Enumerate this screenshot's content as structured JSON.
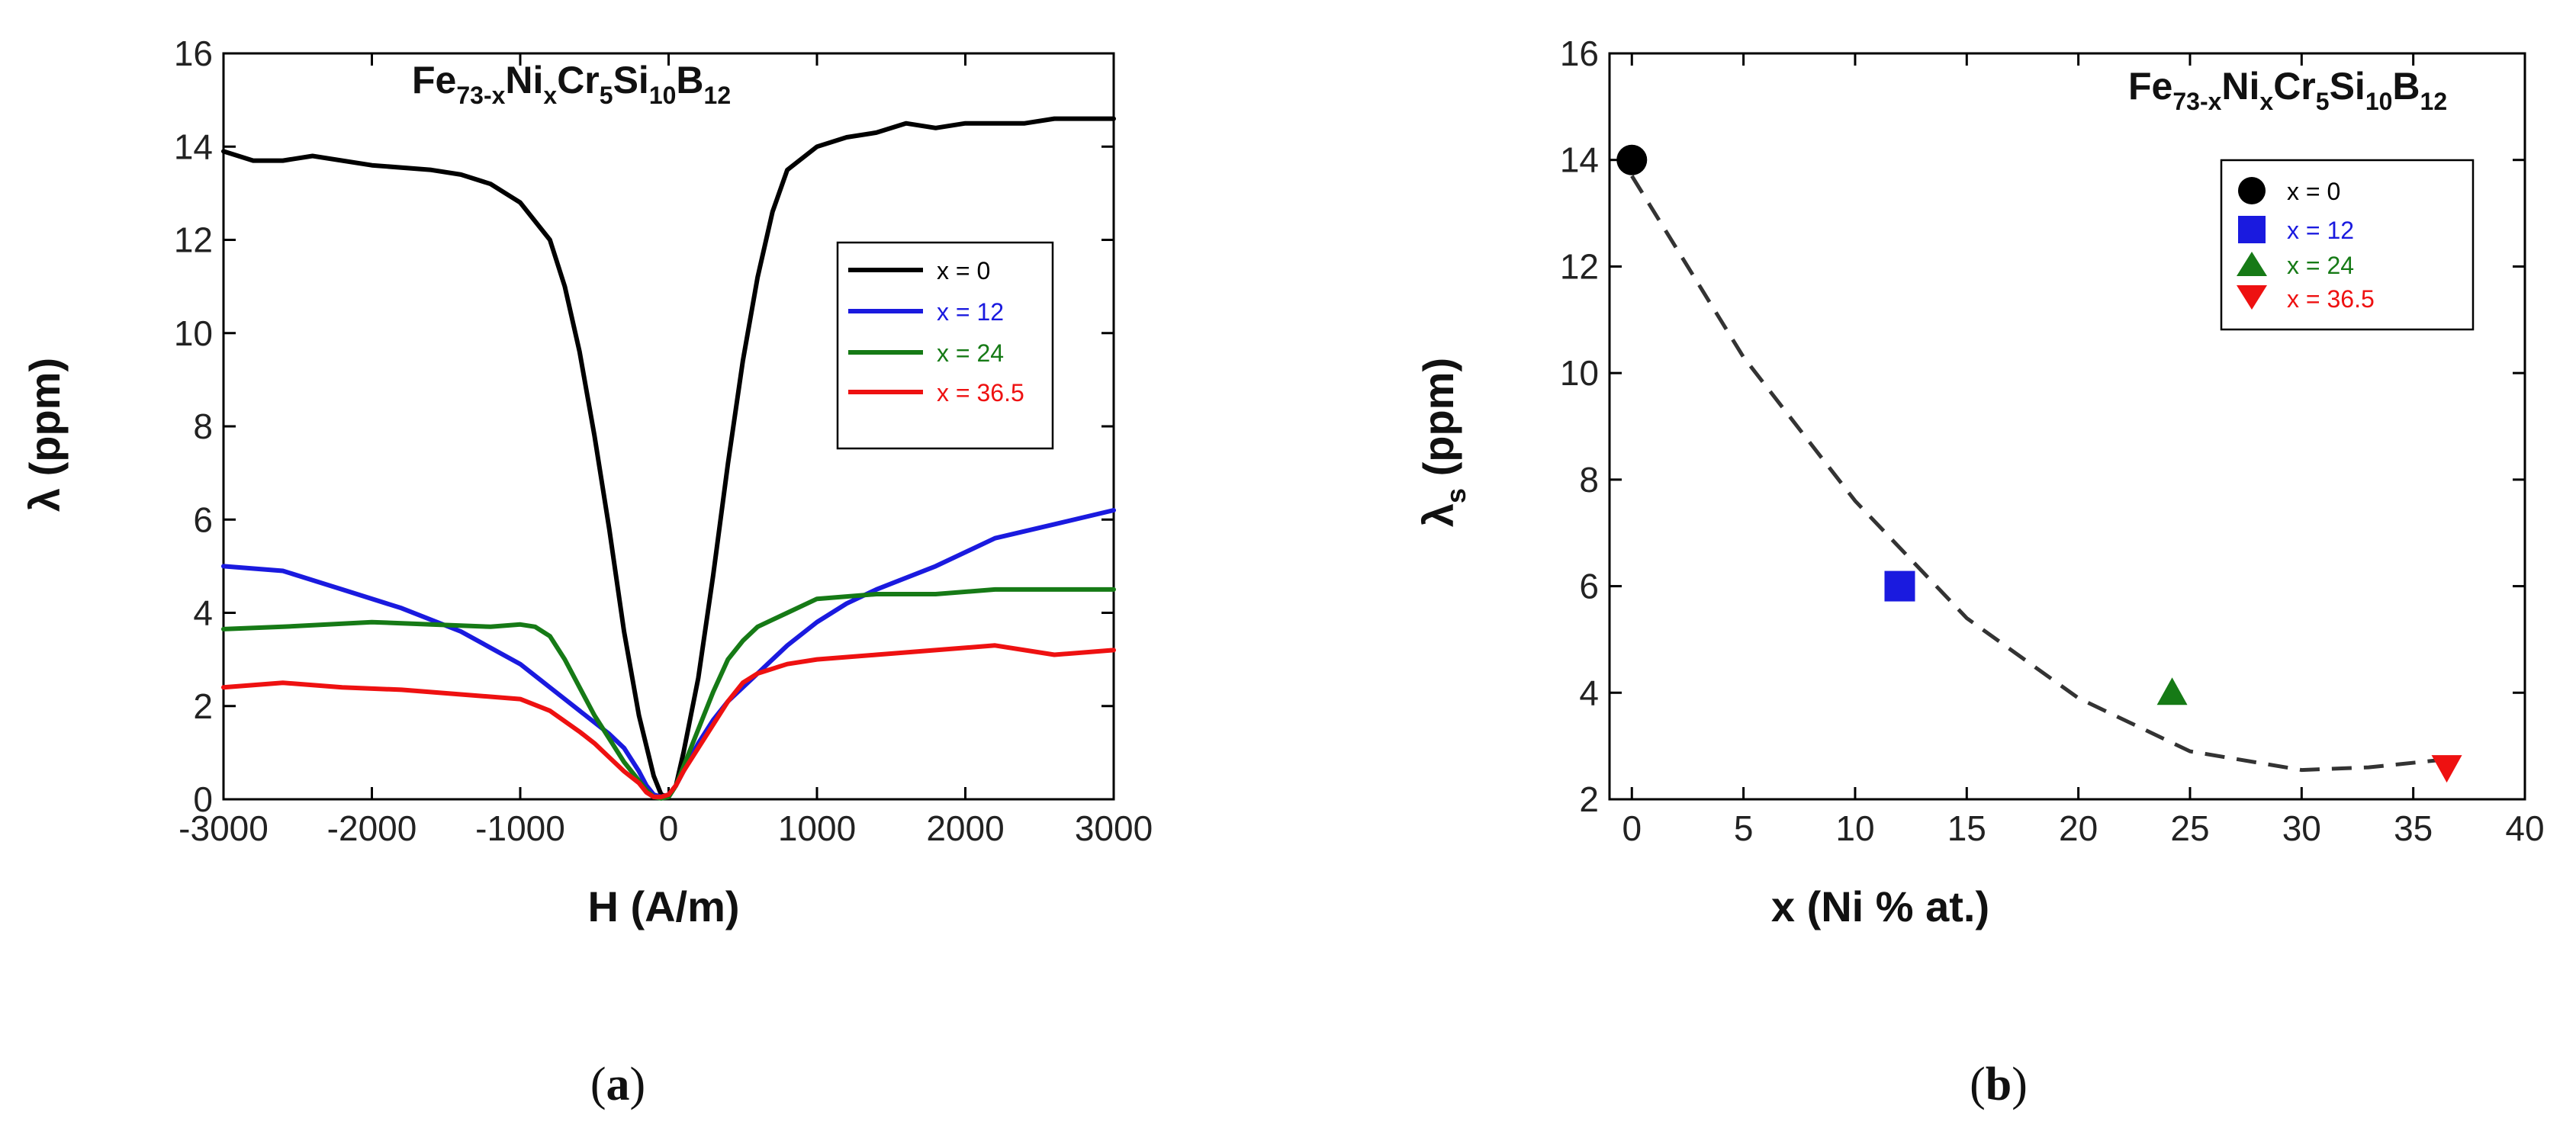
{
  "colors": {
    "x = 0": "#000000",
    "x = 12": "#1a1adf",
    "x = 24": "#167a16",
    "x = 36.5": "#ee1111"
  },
  "chart_data": [
    {
      "panel": "(a)",
      "type": "line",
      "title": {
        "base": "Fe",
        "s1": "73-x",
        "e2": "Ni",
        "s2": "x",
        "e3": "Cr",
        "s3": "5",
        "e4": "Si",
        "s4": "10",
        "e5": "B",
        "s5": "12"
      },
      "xlabel": "H (A/m)",
      "ylabel": "λ (ppm)",
      "xlim": [
        -3000,
        3000
      ],
      "ylim": [
        0,
        16
      ],
      "xticks": [
        -3000,
        -2000,
        -1000,
        0,
        1000,
        2000,
        3000
      ],
      "yticks": [
        0,
        2,
        4,
        6,
        8,
        10,
        12,
        14,
        16
      ],
      "legend_position": "middle-right",
      "series": [
        {
          "name": "x = 0",
          "color": "#000000",
          "x": [
            -3000,
            -2800,
            -2600,
            -2400,
            -2000,
            -1600,
            -1400,
            -1200,
            -1000,
            -800,
            -700,
            -600,
            -500,
            -400,
            -300,
            -200,
            -100,
            -50,
            0,
            50,
            100,
            200,
            300,
            400,
            500,
            600,
            700,
            800,
            1000,
            1200,
            1400,
            1600,
            1800,
            2000,
            2400,
            2600,
            3000
          ],
          "y": [
            13.9,
            13.7,
            13.7,
            13.8,
            13.6,
            13.5,
            13.4,
            13.2,
            12.8,
            12.0,
            11.0,
            9.6,
            7.8,
            5.8,
            3.6,
            1.8,
            0.5,
            0.1,
            0.05,
            0.3,
            1.0,
            2.6,
            4.8,
            7.2,
            9.4,
            11.2,
            12.6,
            13.5,
            14.0,
            14.2,
            14.3,
            14.5,
            14.4,
            14.5,
            14.5,
            14.6,
            14.6
          ]
        },
        {
          "name": "x = 12",
          "color": "#1a1adf",
          "x": [
            -3000,
            -2600,
            -2200,
            -1800,
            -1400,
            -1000,
            -800,
            -600,
            -400,
            -300,
            -200,
            -150,
            -100,
            -50,
            0,
            50,
            100,
            150,
            200,
            300,
            400,
            600,
            800,
            1000,
            1200,
            1400,
            1800,
            2200,
            2600,
            3000
          ],
          "y": [
            5.0,
            4.9,
            4.5,
            4.1,
            3.6,
            2.9,
            2.4,
            1.9,
            1.4,
            1.1,
            0.6,
            0.3,
            0.1,
            0.05,
            0.1,
            0.3,
            0.6,
            0.9,
            1.2,
            1.7,
            2.1,
            2.7,
            3.3,
            3.8,
            4.2,
            4.5,
            5.0,
            5.6,
            5.9,
            6.2
          ]
        },
        {
          "name": "x = 24",
          "color": "#167a16",
          "x": [
            -3000,
            -2600,
            -2000,
            -1600,
            -1200,
            -1000,
            -900,
            -800,
            -700,
            -600,
            -500,
            -400,
            -300,
            -200,
            -150,
            -100,
            -50,
            0,
            50,
            100,
            200,
            300,
            400,
            500,
            600,
            800,
            1000,
            1400,
            1800,
            2200,
            2600,
            3000
          ],
          "y": [
            3.65,
            3.7,
            3.8,
            3.75,
            3.7,
            3.75,
            3.7,
            3.5,
            3.0,
            2.4,
            1.8,
            1.3,
            0.8,
            0.4,
            0.2,
            0.05,
            0.02,
            0.05,
            0.3,
            0.7,
            1.5,
            2.3,
            3.0,
            3.4,
            3.7,
            4.0,
            4.3,
            4.4,
            4.4,
            4.5,
            4.5,
            4.5
          ]
        },
        {
          "name": "x = 36.5",
          "color": "#ee1111",
          "x": [
            -3000,
            -2600,
            -2200,
            -1800,
            -1400,
            -1000,
            -800,
            -600,
            -500,
            -400,
            -300,
            -200,
            -150,
            -100,
            -50,
            0,
            50,
            100,
            200,
            300,
            400,
            500,
            600,
            800,
            1000,
            1400,
            1800,
            2200,
            2600,
            3000
          ],
          "y": [
            2.4,
            2.5,
            2.4,
            2.35,
            2.25,
            2.15,
            1.9,
            1.45,
            1.2,
            0.9,
            0.6,
            0.35,
            0.15,
            0.05,
            0.05,
            0.1,
            0.3,
            0.6,
            1.1,
            1.6,
            2.1,
            2.5,
            2.7,
            2.9,
            3.0,
            3.1,
            3.2,
            3.3,
            3.1,
            3.2
          ]
        }
      ]
    },
    {
      "panel": "(b)",
      "type": "scatter",
      "title": {
        "base": "Fe",
        "s1": "73-x",
        "e2": "Ni",
        "s2": "x",
        "e3": "Cr",
        "s3": "5",
        "e4": "Si",
        "s4": "10",
        "e5": "B",
        "s5": "12"
      },
      "xlabel": "x (Ni % at.)",
      "ylabel": {
        "main": "λ",
        "sub": "s",
        "rest": " (ppm)"
      },
      "xlim": [
        -1,
        40
      ],
      "ylim": [
        2,
        16
      ],
      "xticks": [
        0,
        5,
        10,
        15,
        20,
        25,
        30,
        35,
        40
      ],
      "yticks": [
        2,
        4,
        6,
        8,
        10,
        12,
        14,
        16
      ],
      "legend_position": "top-right",
      "points": [
        {
          "name": "x = 0",
          "x": 0,
          "y": 14.0,
          "marker": "circle",
          "color": "#000000"
        },
        {
          "name": "x = 12",
          "x": 12,
          "y": 6.0,
          "marker": "square",
          "color": "#1a1adf"
        },
        {
          "name": "x = 24",
          "x": 24.2,
          "y": 4.0,
          "marker": "triangle-up",
          "color": "#167a16"
        },
        {
          "name": "x = 36.5",
          "x": 36.5,
          "y": 2.6,
          "marker": "triangle-down",
          "color": "#ee1111"
        }
      ],
      "fit_curve": {
        "style": "dashed",
        "color": "#333333",
        "x": [
          0,
          5,
          10,
          15,
          20,
          25,
          30,
          33,
          36.5
        ],
        "y": [
          13.7,
          10.3,
          7.6,
          5.4,
          3.9,
          2.9,
          2.55,
          2.6,
          2.75
        ]
      }
    }
  ],
  "captions": {
    "a": "a",
    "b": "b"
  }
}
